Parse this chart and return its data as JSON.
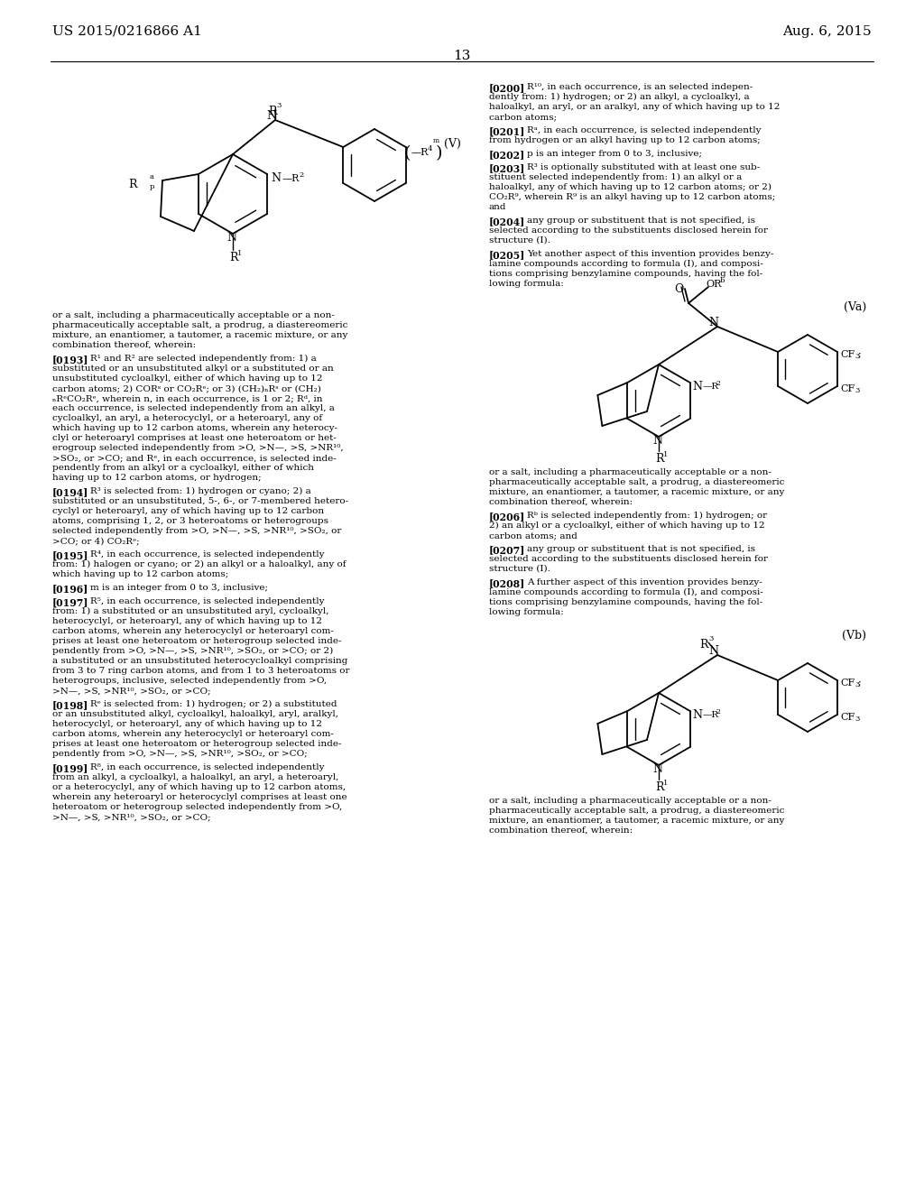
{
  "bg_color": "#ffffff",
  "header_left": "US 2015/0216866 A1",
  "header_right": "Aug. 6, 2015",
  "page_number": "13"
}
